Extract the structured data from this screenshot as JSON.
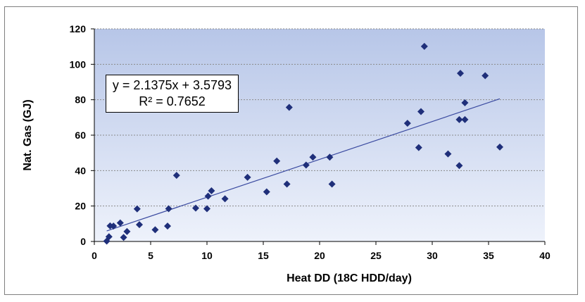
{
  "chart_data": {
    "type": "scatter",
    "title": "",
    "xlabel": "Heat DD (18C HDD/day)",
    "ylabel": "Nat. Gas (GJ)",
    "xlim": [
      0,
      40
    ],
    "ylim": [
      0,
      120
    ],
    "xticks": [
      "0",
      "5",
      "10",
      "15",
      "20",
      "25",
      "30",
      "35",
      "40"
    ],
    "yticks": [
      "0",
      "20",
      "40",
      "60",
      "80",
      "100",
      "120"
    ],
    "grid": "horizontal dashed",
    "series": [
      {
        "marker": "diamond",
        "color": "#1f2f7a",
        "x": [
          1.1,
          1.3,
          1.4,
          1.7,
          2.3,
          2.6,
          2.9,
          3.8,
          4.0,
          5.4,
          6.5,
          6.6,
          7.3,
          9.0,
          10.0,
          10.1,
          10.4,
          11.6,
          13.6,
          15.3,
          16.2,
          17.1,
          17.3,
          18.8,
          19.4,
          20.9,
          21.1,
          27.8,
          28.8,
          29.0,
          29.3,
          31.4,
          32.4,
          32.4,
          32.5,
          32.9,
          32.9,
          34.7,
          36.0
        ],
        "y": [
          0.2,
          2.7,
          8.8,
          8.7,
          10.5,
          2.3,
          5.6,
          18.4,
          9.5,
          6.6,
          8.7,
          18.5,
          37.3,
          18.8,
          18.5,
          25.6,
          28.6,
          24.1,
          36.2,
          28.0,
          45.4,
          32.4,
          75.7,
          43.1,
          47.6,
          47.6,
          32.4,
          66.7,
          53.0,
          73.3,
          110.1,
          49.4,
          42.8,
          68.8,
          94.9,
          78.3,
          68.8,
          93.6,
          53.3
        ]
      }
    ],
    "trendline": {
      "slope": 2.1375,
      "intercept": 3.5793,
      "x_range": [
        1.1,
        36.0
      ],
      "color": "#3a4aa0",
      "equation": "y = 2.1375x + 3.5793",
      "r2": "R² = 0.7652"
    },
    "plot_colors": {
      "gradient_top": "#b7c6e8",
      "gradient_bottom": "#eef2fb",
      "grid": "#8a8a8a"
    }
  }
}
